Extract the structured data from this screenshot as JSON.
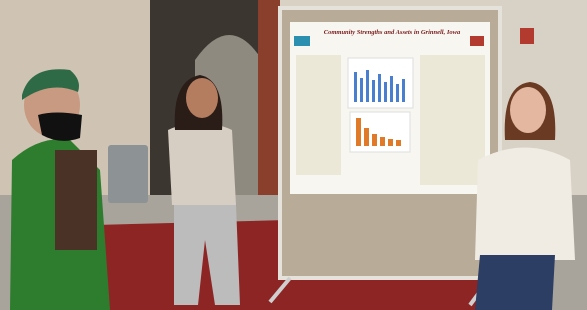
{
  "poster": {
    "title": "Community Strengths and Assets in Grinnell, Iowa"
  }
}
